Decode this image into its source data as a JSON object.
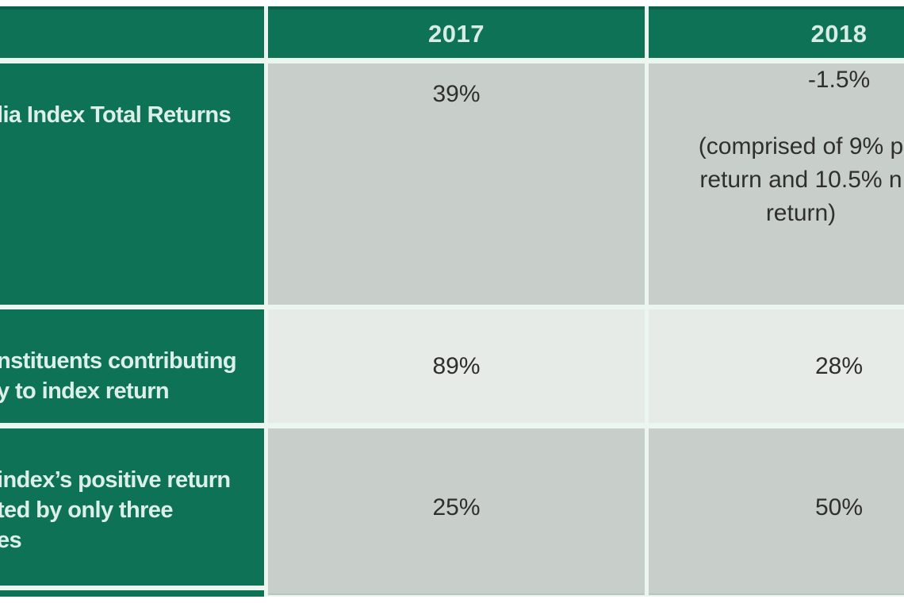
{
  "table": {
    "header": {
      "col_year_1": "2017",
      "col_year_2": "2018"
    },
    "rows": [
      {
        "label_lines": [
          "lia Index Total Returns"
        ],
        "y2017": "39%",
        "y2018_main": "-1.5%",
        "y2018_note_lines": [
          "(comprised of 9% p",
          "return and 10.5% n",
          "return)"
        ]
      },
      {
        "label_lines": [
          "nstituents contributing",
          "y to index return"
        ],
        "y2017": "89%",
        "y2018": "28%"
      },
      {
        "label_lines": [
          "index’s positive return",
          "ted by only three",
          "es"
        ],
        "y2017": "25%",
        "y2018": "50%"
      }
    ],
    "colors": {
      "header_green": "#0e7257",
      "header_green_dark_edge": "#0b6049",
      "gridline_mint": "#ecf6f1",
      "row_gray_dark": "#c8cfca",
      "row_gray_light": "#e6ebe7",
      "label_text": "#dcefe8",
      "value_text": "#2f2f2f"
    }
  }
}
